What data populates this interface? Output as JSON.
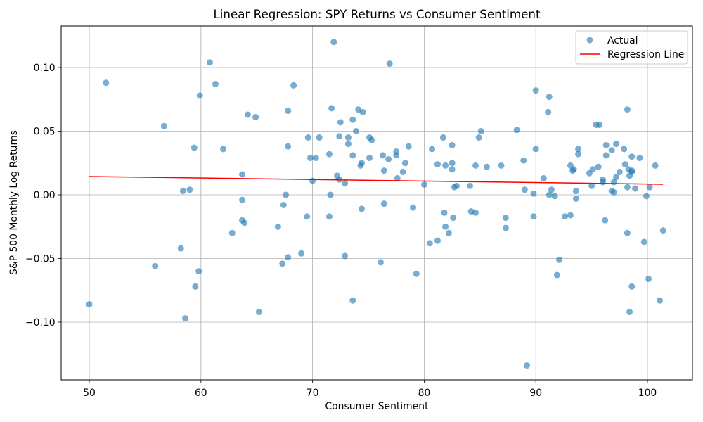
{
  "chart_data": {
    "type": "scatter",
    "title": "Linear Regression: SPY Returns vs Consumer Sentiment",
    "xlabel": "Consumer Sentiment",
    "ylabel": "S&P 500 Monthly Log Returns",
    "xlim": [
      47.48,
      104.03
    ],
    "ylim": [
      -0.1453,
      0.1326
    ],
    "xticks": [
      50,
      60,
      70,
      80,
      90,
      100
    ],
    "xtick_labels": [
      "50",
      "60",
      "70",
      "80",
      "90",
      "100"
    ],
    "yticks": [
      -0.1,
      -0.05,
      0.0,
      0.05,
      0.1
    ],
    "ytick_labels": [
      "−0.10",
      "−0.05",
      "0.00",
      "0.05",
      "0.10"
    ],
    "grid": true,
    "legend": "upper right",
    "series": [
      {
        "name": "Actual",
        "type": "scatter",
        "color": "#1f77b4",
        "alpha": 0.6,
        "points": [
          [
            50.0,
            -0.086
          ],
          [
            51.5,
            0.088
          ],
          [
            55.9,
            -0.056
          ],
          [
            56.7,
            0.054
          ],
          [
            58.2,
            -0.042
          ],
          [
            58.4,
            0.003
          ],
          [
            58.6,
            -0.097
          ],
          [
            59.0,
            0.004
          ],
          [
            59.4,
            0.037
          ],
          [
            59.5,
            -0.072
          ],
          [
            59.8,
            -0.06
          ],
          [
            59.9,
            0.078
          ],
          [
            60.8,
            0.104
          ],
          [
            61.3,
            0.087
          ],
          [
            62.0,
            0.036
          ],
          [
            62.8,
            -0.03
          ],
          [
            63.7,
            0.016
          ],
          [
            63.7,
            -0.004
          ],
          [
            63.7,
            -0.02
          ],
          [
            63.9,
            -0.022
          ],
          [
            64.2,
            0.063
          ],
          [
            64.9,
            0.061
          ],
          [
            65.2,
            -0.092
          ],
          [
            66.9,
            -0.025
          ],
          [
            67.3,
            -0.054
          ],
          [
            67.4,
            -0.008
          ],
          [
            67.6,
            0.0
          ],
          [
            67.8,
            0.038
          ],
          [
            67.8,
            0.066
          ],
          [
            67.8,
            -0.049
          ],
          [
            68.3,
            0.086
          ],
          [
            69.0,
            -0.046
          ],
          [
            69.5,
            -0.017
          ],
          [
            69.6,
            0.045
          ],
          [
            69.8,
            0.029
          ],
          [
            70.0,
            0.011
          ],
          [
            70.3,
            0.029
          ],
          [
            70.6,
            0.045
          ],
          [
            71.5,
            0.032
          ],
          [
            71.5,
            -0.017
          ],
          [
            71.6,
            0.0
          ],
          [
            71.7,
            0.068
          ],
          [
            71.9,
            0.12
          ],
          [
            72.2,
            0.015
          ],
          [
            72.4,
            0.046
          ],
          [
            72.4,
            0.012
          ],
          [
            72.5,
            0.057
          ],
          [
            72.9,
            0.009
          ],
          [
            72.9,
            -0.048
          ],
          [
            73.2,
            0.045
          ],
          [
            73.2,
            0.04
          ],
          [
            73.6,
            0.059
          ],
          [
            73.6,
            0.031
          ],
          [
            73.6,
            -0.083
          ],
          [
            73.9,
            0.05
          ],
          [
            74.1,
            0.067
          ],
          [
            74.3,
            0.023
          ],
          [
            74.4,
            0.025
          ],
          [
            74.4,
            -0.011
          ],
          [
            74.5,
            0.065
          ],
          [
            75.1,
            0.045
          ],
          [
            75.1,
            0.029
          ],
          [
            75.3,
            0.043
          ],
          [
            76.1,
            -0.053
          ],
          [
            76.3,
            0.031
          ],
          [
            76.4,
            0.019
          ],
          [
            76.4,
            -0.007
          ],
          [
            76.8,
            0.028
          ],
          [
            76.9,
            0.103
          ],
          [
            77.5,
            0.034
          ],
          [
            77.5,
            0.031
          ],
          [
            77.6,
            0.013
          ],
          [
            78.1,
            0.018
          ],
          [
            78.3,
            0.025
          ],
          [
            78.6,
            0.038
          ],
          [
            79.0,
            -0.01
          ],
          [
            79.3,
            -0.062
          ],
          [
            80.0,
            0.008
          ],
          [
            80.5,
            -0.038
          ],
          [
            80.7,
            0.036
          ],
          [
            81.2,
            0.024
          ],
          [
            81.2,
            -0.036
          ],
          [
            81.7,
            0.045
          ],
          [
            81.8,
            -0.014
          ],
          [
            81.9,
            -0.025
          ],
          [
            81.9,
            0.023
          ],
          [
            82.2,
            -0.03
          ],
          [
            82.5,
            0.039
          ],
          [
            82.5,
            0.025
          ],
          [
            82.5,
            0.02
          ],
          [
            82.6,
            -0.018
          ],
          [
            82.7,
            0.006
          ],
          [
            82.9,
            0.007
          ],
          [
            84.1,
            0.007
          ],
          [
            84.2,
            -0.013
          ],
          [
            84.6,
            0.023
          ],
          [
            84.6,
            -0.014
          ],
          [
            84.9,
            0.045
          ],
          [
            85.1,
            0.05
          ],
          [
            85.6,
            0.022
          ],
          [
            86.9,
            0.023
          ],
          [
            87.3,
            -0.018
          ],
          [
            87.3,
            -0.026
          ],
          [
            88.3,
            0.051
          ],
          [
            88.9,
            0.027
          ],
          [
            89.0,
            0.004
          ],
          [
            89.2,
            -0.134
          ],
          [
            89.8,
            0.001
          ],
          [
            89.8,
            -0.017
          ],
          [
            90.0,
            0.082
          ],
          [
            90.0,
            0.036
          ],
          [
            90.7,
            0.013
          ],
          [
            91.1,
            0.065
          ],
          [
            91.2,
            0.077
          ],
          [
            91.2,
            0.0
          ],
          [
            91.4,
            0.004
          ],
          [
            91.7,
            -0.001
          ],
          [
            91.9,
            -0.063
          ],
          [
            92.1,
            -0.051
          ],
          [
            92.6,
            -0.017
          ],
          [
            93.1,
            -0.016
          ],
          [
            93.1,
            0.023
          ],
          [
            93.3,
            0.019
          ],
          [
            93.4,
            0.02
          ],
          [
            93.6,
            0.003
          ],
          [
            93.6,
            -0.003
          ],
          [
            93.8,
            0.036
          ],
          [
            93.8,
            0.032
          ],
          [
            94.8,
            0.017
          ],
          [
            95.0,
            0.007
          ],
          [
            95.1,
            0.02
          ],
          [
            95.4,
            0.055
          ],
          [
            95.6,
            0.022
          ],
          [
            95.7,
            0.055
          ],
          [
            96.0,
            0.012
          ],
          [
            96.0,
            0.01
          ],
          [
            96.2,
            -0.02
          ],
          [
            96.3,
            0.031
          ],
          [
            96.3,
            0.039
          ],
          [
            96.8,
            0.035
          ],
          [
            96.8,
            0.003
          ],
          [
            97.0,
            0.002
          ],
          [
            97.0,
            0.01
          ],
          [
            97.2,
            0.014
          ],
          [
            97.2,
            0.04
          ],
          [
            97.5,
            0.018
          ],
          [
            97.9,
            0.036
          ],
          [
            98.0,
            0.024
          ],
          [
            98.2,
            -0.03
          ],
          [
            98.2,
            0.067
          ],
          [
            98.2,
            0.006
          ],
          [
            98.3,
            0.02
          ],
          [
            98.4,
            -0.092
          ],
          [
            98.4,
            0.015
          ],
          [
            98.6,
            0.019
          ],
          [
            98.6,
            0.03
          ],
          [
            98.6,
            0.018
          ],
          [
            98.6,
            -0.072
          ],
          [
            98.9,
            0.005
          ],
          [
            99.3,
            0.029
          ],
          [
            99.7,
            -0.037
          ],
          [
            99.9,
            -0.001
          ],
          [
            100.1,
            -0.066
          ],
          [
            100.2,
            0.006
          ],
          [
            100.7,
            0.023
          ],
          [
            101.1,
            -0.083
          ],
          [
            101.4,
            -0.028
          ]
        ]
      },
      {
        "name": "Regression Line",
        "type": "line",
        "color": "#ff0000",
        "x": [
          50.0,
          101.4
        ],
        "y": [
          0.0144,
          0.0083
        ]
      }
    ]
  }
}
